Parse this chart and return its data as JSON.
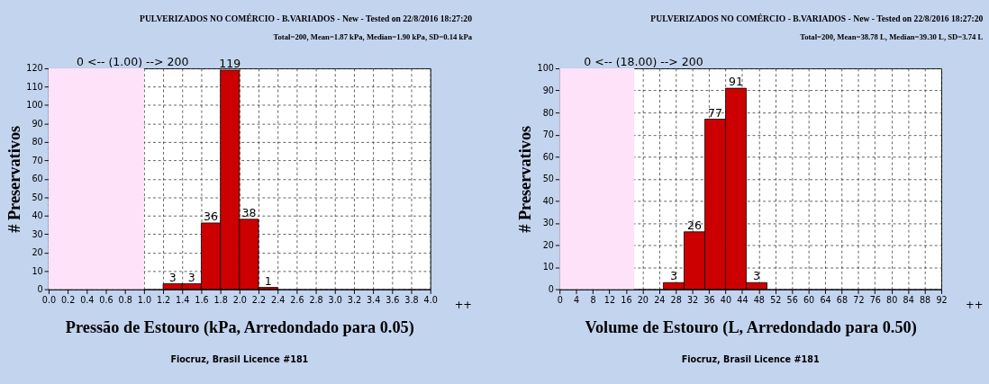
{
  "chart_data": [
    {
      "type": "histogram",
      "title": "PULVERIZADOS NO COMÉRCIO - B.VARIADOS - New - Tested on 22/8/2016 18:27:20",
      "subtitle": "Total=200, Mean=1.87 kPa, Median=1.90 kPa, SD=0.14 kPa",
      "xlabel": "Pressão de Estouro (kPa, Arredondado para 0.05)",
      "ylabel": "# Preservativos",
      "bins": [
        1.2,
        1.4,
        1.6,
        1.8,
        2.0,
        2.2,
        2.4
      ],
      "values": [
        3,
        3,
        36,
        119,
        38,
        1
      ],
      "color": "#cc0000",
      "data_labels": true,
      "grid": true,
      "xlim": [
        0,
        4
      ],
      "xticks": [
        {
          "value": 0,
          "label": "0.0"
        },
        {
          "value": 0.2,
          "label": "0.2"
        },
        {
          "value": 0.4,
          "label": "0.4"
        },
        {
          "value": 0.6,
          "label": "0.6"
        },
        {
          "value": 0.8,
          "label": "0.8"
        },
        {
          "value": 1,
          "label": "1.0"
        },
        {
          "value": 1.2,
          "label": "1.2"
        },
        {
          "value": 1.4,
          "label": "1.4"
        },
        {
          "value": 1.6,
          "label": "1.6"
        },
        {
          "value": 1.8,
          "label": "1.8"
        },
        {
          "value": 2,
          "label": "2.0"
        },
        {
          "value": 2.2,
          "label": "2.2"
        },
        {
          "value": 2.4,
          "label": "2.4"
        },
        {
          "value": 2.6,
          "label": "2.6"
        },
        {
          "value": 2.8,
          "label": "2.8"
        },
        {
          "value": 3,
          "label": "3.0"
        },
        {
          "value": 3.2,
          "label": "3.2"
        },
        {
          "value": 3.4,
          "label": "3.4"
        },
        {
          "value": 3.6,
          "label": "3.6"
        },
        {
          "value": 3.8,
          "label": "3.8"
        },
        {
          "value": 4,
          "label": "4.0"
        }
      ],
      "ylim": [
        0,
        120
      ],
      "yticks": [
        0,
        10,
        20,
        30,
        40,
        50,
        60,
        70,
        80,
        90,
        100,
        110,
        120
      ],
      "bands": [
        {
          "axis": "x",
          "from": 0,
          "to": 1,
          "color": "#fde2fa"
        }
      ],
      "annotations": [
        "0 <-- (1.00) --> 200",
        "++",
        "Fiocruz, Brasil Licence #181"
      ]
    },
    {
      "type": "histogram",
      "title": "PULVERIZADOS NO COMÉRCIO - B.VARIADOS - New - Tested on 22/8/2016 18:27:20",
      "subtitle": "Total=200, Mean=38.78 L, Median=39.30 L, SD=3.74 L",
      "xlabel": "Volume de Estouro (L, Arredondado para 0.50)",
      "ylabel": "# Preservativos",
      "bins": [
        25,
        30,
        35,
        40,
        45,
        50
      ],
      "values": [
        3,
        26,
        77,
        91,
        3
      ],
      "color": "#cc0000",
      "data_labels": true,
      "grid": true,
      "xlim": [
        0,
        92
      ],
      "xticks": [
        0,
        4,
        8,
        12,
        16,
        20,
        24,
        28,
        32,
        36,
        40,
        44,
        48,
        52,
        56,
        60,
        64,
        68,
        72,
        76,
        80,
        84,
        88,
        92
      ],
      "ylim": [
        0,
        100
      ],
      "yticks": [
        0,
        10,
        20,
        30,
        40,
        50,
        60,
        70,
        80,
        90,
        100
      ],
      "bands": [
        {
          "axis": "x",
          "from": 0,
          "to": 18,
          "color": "#fde2fa"
        }
      ],
      "annotations": [
        "0 <-- (18.00) --> 200",
        "++",
        "Fiocruz, Brasil Licence #181"
      ]
    }
  ]
}
